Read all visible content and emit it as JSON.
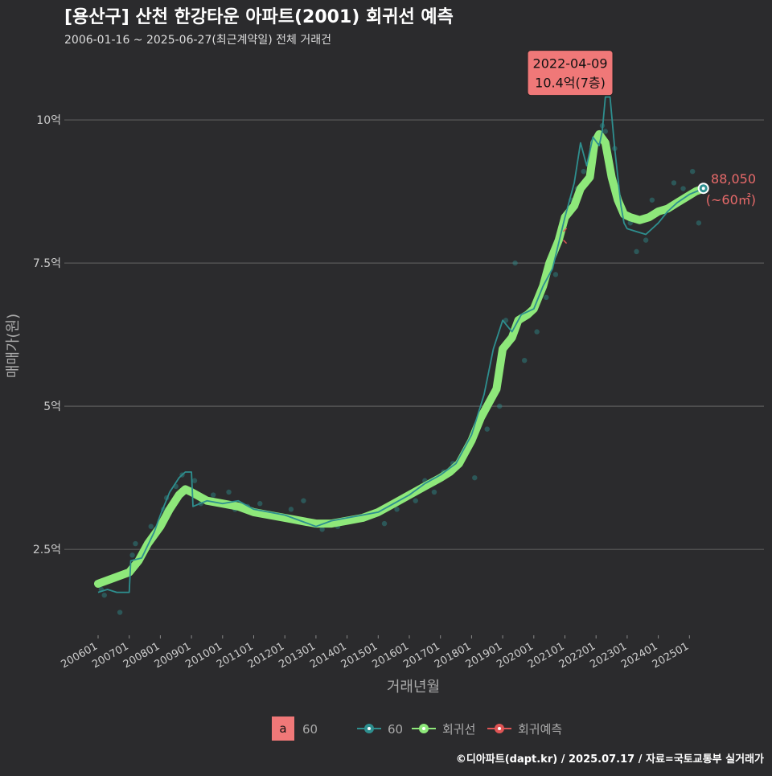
{
  "header": {
    "title": "[용산구] 산천 한강타운 아파트(2001) 회귀선 예측",
    "subtitle": "2006-01-16 ~ 2025-06-27(최근계약일) 전체 거래건"
  },
  "footer": {
    "credit": "©디아파트(dapt.kr) / 2025.07.17 / 자료=국토교통부 실거래가"
  },
  "colors": {
    "background": "#2b2b2d",
    "grid": "#5a5a5a",
    "series_60": "#2e8f8f",
    "regression": "#8ee87a",
    "prediction": "#e05555",
    "annotation_fill": "#f07878",
    "label_red": "#e86a6a",
    "text": "#ffffff",
    "muted_text": "#bbbbbb"
  },
  "chart_data": {
    "type": "line",
    "title": "[용산구] 산천 한강타운 아파트(2001) 회귀선 예측",
    "xlabel": "거래년월",
    "ylabel": "매매가(원)",
    "x_range": [
      2006.0,
      2025.5
    ],
    "ylim": [
      1.0,
      10.9
    ],
    "categories": [
      "200601",
      "200701",
      "200801",
      "200901",
      "201001",
      "201101",
      "201201",
      "201301",
      "201401",
      "201501",
      "201601",
      "201701",
      "201801",
      "201901",
      "202001",
      "202101",
      "202201",
      "202301",
      "202401",
      "202501"
    ],
    "y_ticks": [
      {
        "value": 2.5,
        "label": "2.5억"
      },
      {
        "value": 5,
        "label": "5억"
      },
      {
        "value": 7.5,
        "label": "7.5억"
      },
      {
        "value": 10,
        "label": "10억"
      }
    ],
    "grid": true,
    "legend": {
      "position": "bottom",
      "items": [
        {
          "key": "a",
          "label": "60",
          "kind": "text-key"
        },
        {
          "label": "60",
          "kind": "series"
        },
        {
          "label": "회귀선",
          "kind": "regression"
        },
        {
          "label": "회귀예측",
          "kind": "prediction"
        }
      ]
    },
    "series": [
      {
        "name": "회귀선",
        "x": [
          2006.0,
          2006.5,
          2007.0,
          2007.3,
          2007.6,
          2008.0,
          2008.3,
          2008.6,
          2008.8,
          2009.0,
          2009.5,
          2010.0,
          2010.5,
          2011.0,
          2011.5,
          2012.0,
          2012.5,
          2013.0,
          2013.5,
          2014.0,
          2014.5,
          2015.0,
          2015.5,
          2016.0,
          2016.5,
          2017.0,
          2017.3,
          2017.6,
          2018.0,
          2018.3,
          2018.6,
          2018.8,
          2019.0,
          2019.3,
          2019.5,
          2019.8,
          2020.0,
          2020.3,
          2020.5,
          2020.8,
          2021.0,
          2021.3,
          2021.5,
          2021.8,
          2021.95,
          2022.1,
          2022.3,
          2022.5,
          2022.7,
          2022.9,
          2023.1,
          2023.4,
          2023.7,
          2024.0,
          2024.3,
          2024.6,
          2024.9,
          2025.2,
          2025.45
        ],
        "values": [
          1.9,
          2.0,
          2.1,
          2.3,
          2.6,
          2.9,
          3.2,
          3.45,
          3.55,
          3.5,
          3.35,
          3.3,
          3.25,
          3.15,
          3.1,
          3.05,
          3.0,
          2.95,
          2.95,
          3.0,
          3.05,
          3.15,
          3.3,
          3.45,
          3.6,
          3.75,
          3.85,
          4.0,
          4.4,
          4.8,
          5.1,
          5.3,
          6.0,
          6.2,
          6.5,
          6.6,
          6.7,
          7.1,
          7.5,
          7.9,
          8.3,
          8.5,
          8.8,
          9.0,
          9.6,
          9.75,
          9.6,
          9.0,
          8.6,
          8.35,
          8.3,
          8.25,
          8.3,
          8.4,
          8.45,
          8.55,
          8.65,
          8.75,
          8.8
        ]
      },
      {
        "name": "60",
        "x": [
          2006.0,
          2006.3,
          2006.6,
          2007.0,
          2007.05,
          2007.4,
          2007.8,
          2008.0,
          2008.3,
          2008.6,
          2008.8,
          2009.0,
          2009.05,
          2009.5,
          2010.0,
          2010.5,
          2011.0,
          2011.5,
          2012.0,
          2012.5,
          2013.0,
          2013.5,
          2014.0,
          2014.5,
          2015.0,
          2015.5,
          2016.0,
          2016.5,
          2017.0,
          2017.5,
          2018.0,
          2018.4,
          2018.7,
          2019.0,
          2019.3,
          2019.6,
          2020.0,
          2020.3,
          2020.6,
          2021.0,
          2021.3,
          2021.5,
          2021.7,
          2021.9,
          2022.1,
          2022.2,
          2022.3,
          2022.45,
          2022.6,
          2022.7,
          2022.8,
          2022.9,
          2023.0,
          2023.3,
          2023.6,
          2024.0,
          2024.3,
          2024.6,
          2025.0,
          2025.45
        ],
        "values": [
          1.75,
          1.8,
          1.75,
          1.75,
          2.3,
          2.35,
          2.8,
          3.1,
          3.5,
          3.75,
          3.85,
          3.85,
          3.25,
          3.35,
          3.3,
          3.35,
          3.2,
          3.15,
          3.1,
          3.0,
          2.9,
          3.0,
          3.05,
          3.1,
          3.15,
          3.3,
          3.45,
          3.65,
          3.8,
          4.0,
          4.5,
          5.2,
          6.0,
          6.5,
          6.3,
          6.6,
          6.7,
          7.1,
          7.4,
          8.3,
          8.9,
          9.6,
          9.2,
          9.7,
          9.55,
          9.8,
          10.4,
          10.4,
          9.5,
          9.0,
          8.5,
          8.2,
          8.1,
          8.05,
          8.0,
          8.2,
          8.4,
          8.55,
          8.7,
          8.8
        ]
      }
    ],
    "scatter_60": {
      "x": [
        2006.1,
        2006.2,
        2006.4,
        2006.7,
        2006.9,
        2007.1,
        2007.2,
        2007.5,
        2007.7,
        2008.1,
        2008.2,
        2008.5,
        2008.7,
        2009.1,
        2009.3,
        2009.7,
        2010.2,
        2010.4,
        2010.8,
        2011.2,
        2011.7,
        2012.2,
        2012.6,
        2013.2,
        2013.7,
        2014.2,
        2014.6,
        2015.2,
        2015.6,
        2016.2,
        2016.5,
        2016.8,
        2017.1,
        2017.4,
        2017.8,
        2018.1,
        2018.5,
        2018.9,
        2019.1,
        2019.4,
        2019.7,
        2020.1,
        2020.4,
        2020.7,
        2020.9,
        2021.2,
        2021.4,
        2021.6,
        2022.2,
        2022.3,
        2022.6,
        2023.1,
        2023.3,
        2023.6,
        2023.8,
        2024.2,
        2024.5,
        2024.8,
        2025.1,
        2025.3
      ],
      "values": [
        1.8,
        1.7,
        1.95,
        1.4,
        2.1,
        2.4,
        2.6,
        2.5,
        2.9,
        3.2,
        3.4,
        3.6,
        3.8,
        3.7,
        3.3,
        3.45,
        3.5,
        3.2,
        3.25,
        3.3,
        3.1,
        3.2,
        3.35,
        2.85,
        2.9,
        3.0,
        3.05,
        2.95,
        3.2,
        3.35,
        3.7,
        3.5,
        3.85,
        4.0,
        4.2,
        3.75,
        4.6,
        5.0,
        6.5,
        7.5,
        5.8,
        6.3,
        6.9,
        7.3,
        8.2,
        8.6,
        8.8,
        9.1,
        9.9,
        9.8,
        9.5,
        8.2,
        7.7,
        7.9,
        8.6,
        8.4,
        8.9,
        8.8,
        9.1,
        8.2
      ],
      "opacity": 0.45
    },
    "annotations": {
      "peak": {
        "date": "2022-04-09",
        "value": 10.4,
        "label_date": "2022-04-09",
        "label_price": "10.4억(7층)"
      },
      "latest": {
        "value": 8.805,
        "label_price": "88,050",
        "label_area": "(~60㎡)"
      }
    }
  }
}
